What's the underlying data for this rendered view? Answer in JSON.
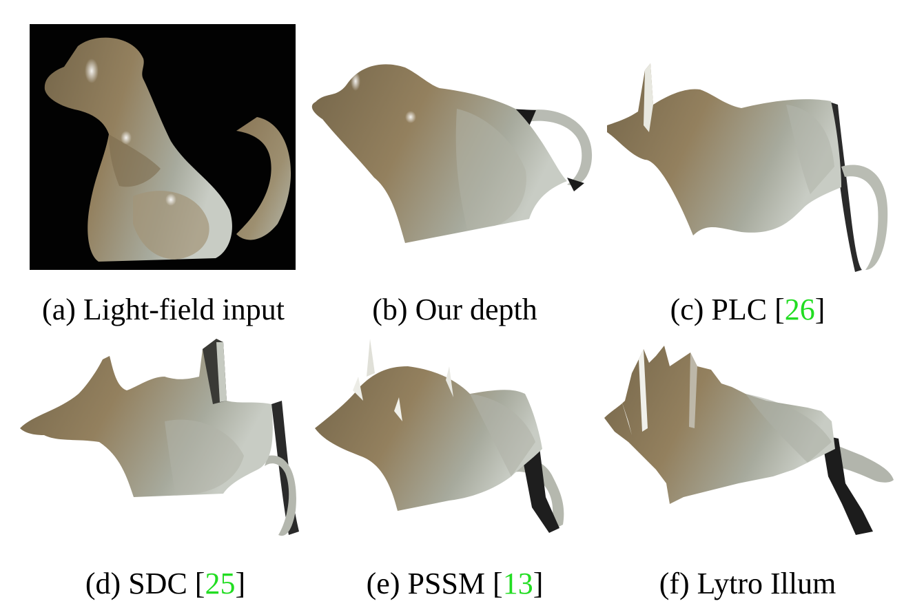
{
  "panels": [
    {
      "id": "a",
      "prefix": "(a) ",
      "label": "Light-field input",
      "cite": "",
      "suffix": ""
    },
    {
      "id": "b",
      "prefix": "(b) ",
      "label": "Our depth",
      "cite": "",
      "suffix": ""
    },
    {
      "id": "c",
      "prefix": "(c) ",
      "label": "PLC [",
      "cite": "26",
      "suffix": "]"
    },
    {
      "id": "d",
      "prefix": "(d) ",
      "label": "SDC [",
      "cite": "25",
      "suffix": "]"
    },
    {
      "id": "e",
      "prefix": "(e) ",
      "label": "PSSM [",
      "cite": "13",
      "suffix": "]"
    },
    {
      "id": "f",
      "prefix": "(f) ",
      "label": "Lytro Illum",
      "cite": "",
      "suffix": ""
    }
  ],
  "colors": {
    "citation": "#22dd22",
    "ceramic": "#8f7c5b",
    "background_a": "#000000"
  }
}
